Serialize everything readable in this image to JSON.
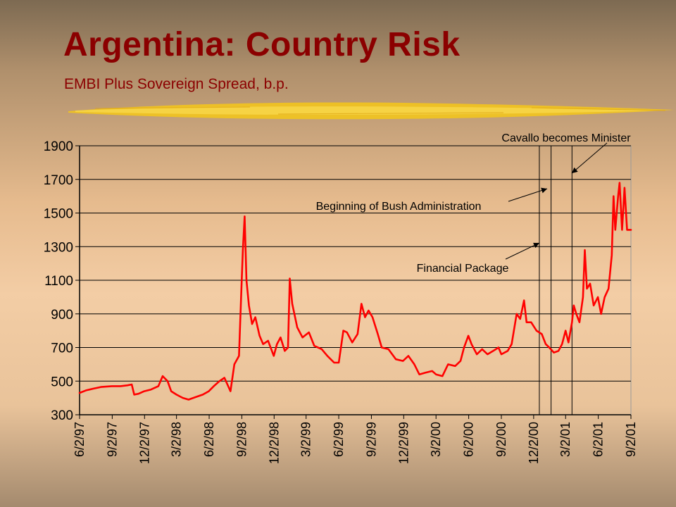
{
  "slide": {
    "title": "Argentina: Country Risk",
    "subtitle": "EMBI Plus Sovereign Spread, b.p."
  },
  "colors": {
    "title": "#8b0000",
    "series_line": "#ff0000",
    "brush_stroke": "#f2c41e"
  },
  "chart_data": {
    "type": "line",
    "title": "",
    "xlabel": "",
    "ylabel": "",
    "ylim": [
      300,
      1900
    ],
    "yticks": [
      300,
      500,
      700,
      900,
      1100,
      1300,
      1500,
      1700,
      1900
    ],
    "xlim": [
      "1997-06-02",
      "2001-09-02"
    ],
    "xticks": [
      "6/2/97",
      "9/2/97",
      "12/2/97",
      "3/2/98",
      "6/2/98",
      "9/2/98",
      "12/2/98",
      "3/2/99",
      "6/2/99",
      "9/2/99",
      "12/2/99",
      "3/2/00",
      "6/2/00",
      "9/2/00",
      "12/2/00",
      "3/2/01",
      "6/2/01",
      "9/2/01"
    ],
    "grid": "horizontal",
    "legend": "none",
    "series": [
      {
        "points": [
          [
            "1997-06-02",
            430
          ],
          [
            "1997-06-20",
            445
          ],
          [
            "1997-07-10",
            455
          ],
          [
            "1997-08-01",
            465
          ],
          [
            "1997-09-01",
            470
          ],
          [
            "1997-09-25",
            470
          ],
          [
            "1997-10-15",
            475
          ],
          [
            "1997-10-27",
            480
          ],
          [
            "1997-11-03",
            420
          ],
          [
            "1997-11-15",
            425
          ],
          [
            "1997-12-01",
            440
          ],
          [
            "1997-12-20",
            450
          ],
          [
            "1998-01-10",
            470
          ],
          [
            "1998-01-22",
            530
          ],
          [
            "1998-02-05",
            500
          ],
          [
            "1998-02-15",
            440
          ],
          [
            "1998-03-02",
            420
          ],
          [
            "1998-03-20",
            400
          ],
          [
            "1998-04-05",
            390
          ],
          [
            "1998-04-25",
            405
          ],
          [
            "1998-05-15",
            420
          ],
          [
            "1998-06-01",
            440
          ],
          [
            "1998-06-15",
            470
          ],
          [
            "1998-07-01",
            500
          ],
          [
            "1998-07-15",
            520
          ],
          [
            "1998-08-01",
            440
          ],
          [
            "1998-08-12",
            600
          ],
          [
            "1998-08-25",
            650
          ],
          [
            "1998-08-31",
            1000
          ],
          [
            "1998-09-05",
            1280
          ],
          [
            "1998-09-10",
            1480
          ],
          [
            "1998-09-15",
            1100
          ],
          [
            "1998-09-22",
            950
          ],
          [
            "1998-10-01",
            840
          ],
          [
            "1998-10-10",
            880
          ],
          [
            "1998-10-22",
            770
          ],
          [
            "1998-11-01",
            720
          ],
          [
            "1998-11-15",
            740
          ],
          [
            "1998-12-01",
            650
          ],
          [
            "1998-12-10",
            720
          ],
          [
            "1998-12-20",
            760
          ],
          [
            "1999-01-01",
            680
          ],
          [
            "1999-01-10",
            700
          ],
          [
            "1999-01-15",
            1110
          ],
          [
            "1999-01-22",
            960
          ],
          [
            "1999-02-05",
            820
          ],
          [
            "1999-02-20",
            760
          ],
          [
            "1999-03-10",
            790
          ],
          [
            "1999-03-25",
            710
          ],
          [
            "1999-04-15",
            690
          ],
          [
            "1999-05-01",
            650
          ],
          [
            "1999-05-20",
            610
          ],
          [
            "1999-06-02",
            610
          ],
          [
            "1999-06-15",
            800
          ],
          [
            "1999-06-25",
            790
          ],
          [
            "1999-07-10",
            730
          ],
          [
            "1999-07-25",
            780
          ],
          [
            "1999-08-05",
            960
          ],
          [
            "1999-08-15",
            880
          ],
          [
            "1999-08-25",
            920
          ],
          [
            "1999-09-05",
            880
          ],
          [
            "1999-09-20",
            780
          ],
          [
            "1999-10-01",
            700
          ],
          [
            "1999-10-20",
            690
          ],
          [
            "1999-11-10",
            630
          ],
          [
            "1999-11-30",
            620
          ],
          [
            "1999-12-15",
            650
          ],
          [
            "2000-01-01",
            600
          ],
          [
            "2000-01-15",
            540
          ],
          [
            "2000-02-01",
            550
          ],
          [
            "2000-02-20",
            560
          ],
          [
            "2000-03-02",
            540
          ],
          [
            "2000-03-20",
            530
          ],
          [
            "2000-04-05",
            600
          ],
          [
            "2000-04-25",
            590
          ],
          [
            "2000-05-10",
            620
          ],
          [
            "2000-05-20",
            700
          ],
          [
            "2000-06-01",
            770
          ],
          [
            "2000-06-10",
            720
          ],
          [
            "2000-06-25",
            660
          ],
          [
            "2000-07-10",
            690
          ],
          [
            "2000-07-25",
            660
          ],
          [
            "2000-08-10",
            680
          ],
          [
            "2000-08-25",
            700
          ],
          [
            "2000-09-02",
            660
          ],
          [
            "2000-09-20",
            680
          ],
          [
            "2000-10-01",
            720
          ],
          [
            "2000-10-15",
            900
          ],
          [
            "2000-10-25",
            870
          ],
          [
            "2000-11-05",
            980
          ],
          [
            "2000-11-12",
            850
          ],
          [
            "2000-11-25",
            850
          ],
          [
            "2000-12-10",
            800
          ],
          [
            "2000-12-25",
            780
          ],
          [
            "2001-01-05",
            720
          ],
          [
            "2001-01-15",
            700
          ],
          [
            "2001-01-28",
            670
          ],
          [
            "2001-02-10",
            680
          ],
          [
            "2001-02-20",
            720
          ],
          [
            "2001-03-02",
            800
          ],
          [
            "2001-03-10",
            730
          ],
          [
            "2001-03-20",
            850
          ],
          [
            "2001-03-25",
            950
          ],
          [
            "2001-04-01",
            900
          ],
          [
            "2001-04-10",
            850
          ],
          [
            "2001-04-20",
            1000
          ],
          [
            "2001-04-25",
            1280
          ],
          [
            "2001-05-01",
            1050
          ],
          [
            "2001-05-10",
            1080
          ],
          [
            "2001-05-20",
            950
          ],
          [
            "2001-06-01",
            1000
          ],
          [
            "2001-06-10",
            900
          ],
          [
            "2001-06-20",
            1000
          ],
          [
            "2001-07-01",
            1050
          ],
          [
            "2001-07-10",
            1250
          ],
          [
            "2001-07-15",
            1600
          ],
          [
            "2001-07-20",
            1400
          ],
          [
            "2001-07-28",
            1600
          ],
          [
            "2001-08-01",
            1680
          ],
          [
            "2001-08-08",
            1400
          ],
          [
            "2001-08-15",
            1650
          ],
          [
            "2001-08-22",
            1400
          ],
          [
            "2001-09-02",
            1400
          ]
        ]
      }
    ],
    "annotations": [
      {
        "text": "Cavallo becomes Minister",
        "date": "2001-03-20"
      },
      {
        "text": "Beginning of Bush Administration",
        "date": "2001-01-20"
      },
      {
        "text": "Financial Package",
        "date": "2000-12-18"
      }
    ]
  }
}
